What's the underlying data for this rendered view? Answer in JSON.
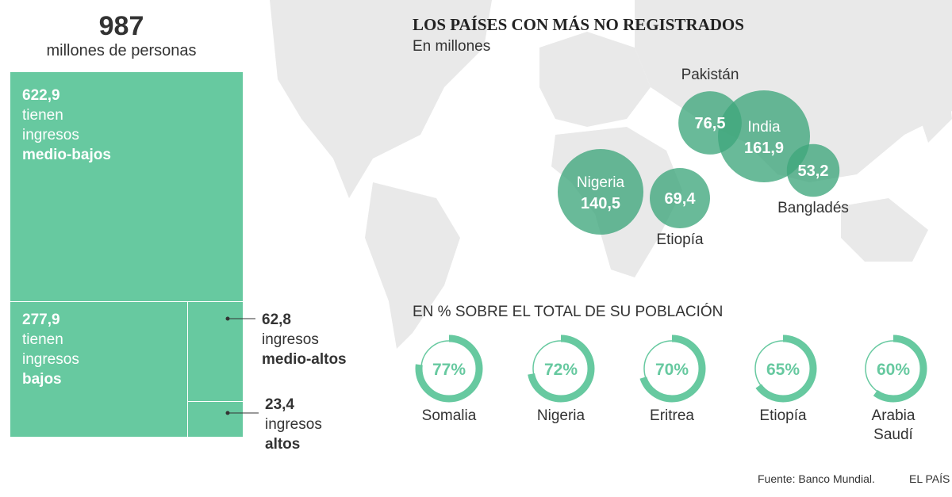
{
  "total": {
    "value": "987",
    "label": "millones de personas"
  },
  "map_title": "LOS PAÍSES CON MÁS NO REGISTRADOS",
  "map_subtitle": "En millones",
  "pct_title": "EN % SOBRE EL TOTAL DE SU POBLACIÓN",
  "source": "Fuente: Banco Mundial.",
  "brand": "EL PAÍS",
  "colors": {
    "green": "#67c9a0",
    "bubble": "#3fa77c",
    "land": "#e8e8e8"
  },
  "chart_data": [
    {
      "type": "treemap",
      "title": "987 millones de personas",
      "items": [
        {
          "value": 622.9,
          "value_label": "622,9",
          "line1": "tienen",
          "line2": "ingresos",
          "category": "medio-bajos"
        },
        {
          "value": 277.9,
          "value_label": "277,9",
          "line1": "tienen",
          "line2": "ingresos",
          "category": "bajos"
        },
        {
          "value": 62.8,
          "value_label": "62,8",
          "line1": "",
          "line2": "ingresos",
          "category": "medio-altos"
        },
        {
          "value": 23.4,
          "value_label": "23,4",
          "line1": "",
          "line2": "ingresos",
          "category": "altos"
        }
      ]
    },
    {
      "type": "bubble",
      "title": "LOS PAÍSES CON MÁS NO REGISTRADOS",
      "unit": "En millones",
      "points": [
        {
          "country": "India",
          "value": 161.9,
          "label": "161,9"
        },
        {
          "country": "Nigeria",
          "value": 140.5,
          "label": "140,5"
        },
        {
          "country": "Pakistán",
          "value": 76.5,
          "label": "76,5"
        },
        {
          "country": "Etiopía",
          "value": 69.4,
          "label": "69,4"
        },
        {
          "country": "Bangladés",
          "value": 53.2,
          "label": "53,2"
        }
      ]
    },
    {
      "type": "donut",
      "title": "EN % SOBRE EL TOTAL DE SU POBLACIÓN",
      "items": [
        {
          "country": "Somalia",
          "value": 77,
          "label": "77%"
        },
        {
          "country": "Nigeria",
          "value": 72,
          "label": "72%"
        },
        {
          "country": "Eritrea",
          "value": 70,
          "label": "70%"
        },
        {
          "country": "Etiopía",
          "value": 65,
          "label": "65%"
        },
        {
          "country": "Arabia Saudí",
          "value": 60,
          "label": "60%"
        }
      ]
    }
  ]
}
